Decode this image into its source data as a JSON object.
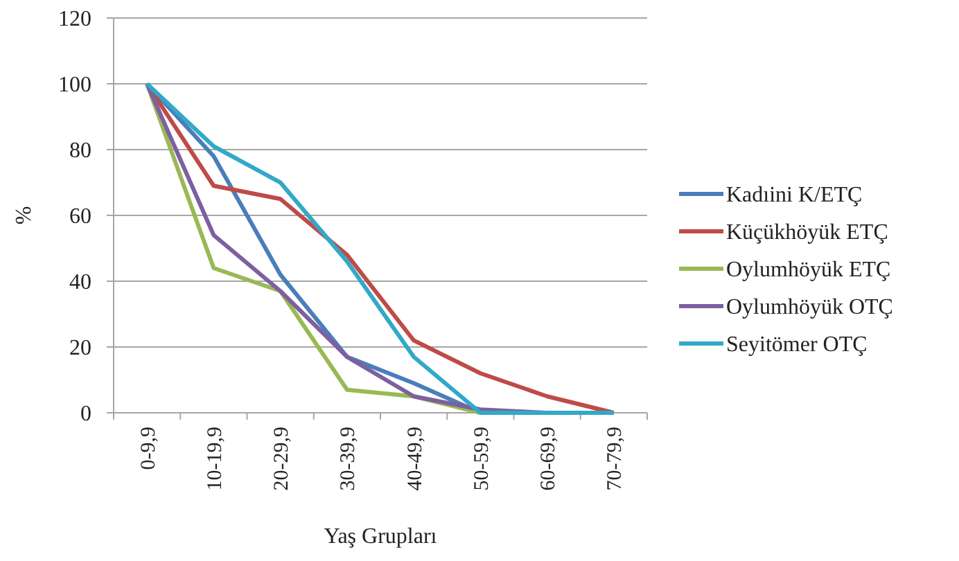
{
  "chart_data": {
    "type": "line",
    "xlabel": "Yaş Grupları",
    "ylabel": "%",
    "categories": [
      "0-9,9",
      "10-19,9",
      "20-29,9",
      "30-39,9",
      "40-49,9",
      "50-59,9",
      "60-69,9",
      "70-79,9"
    ],
    "series": [
      {
        "name": "Kadıini K/ETÇ",
        "color": "#4a7ebb",
        "values": [
          100,
          78,
          42,
          17,
          9,
          0,
          0,
          0
        ]
      },
      {
        "name": "Küçükhöyük ETÇ",
        "color": "#be4b48",
        "values": [
          100,
          69,
          65,
          48,
          22,
          12,
          5,
          0
        ]
      },
      {
        "name": "Oylumhöyük ETÇ",
        "color": "#98b954",
        "values": [
          100,
          44,
          37,
          7,
          5,
          0,
          0,
          0
        ]
      },
      {
        "name": "Oylumhöyük OTÇ",
        "color": "#7d60a0",
        "values": [
          100,
          54,
          37,
          17,
          5,
          1,
          0,
          0
        ]
      },
      {
        "name": "Seyitömer OTÇ",
        "color": "#31a9c7",
        "values": [
          100,
          81,
          70,
          46,
          17,
          0,
          0,
          0
        ]
      }
    ],
    "ylim": [
      0,
      120
    ],
    "yticks": [
      0,
      20,
      40,
      60,
      80,
      100,
      120
    ],
    "grid": "y",
    "legend": "right",
    "marker": "none",
    "line_style": "solid"
  }
}
